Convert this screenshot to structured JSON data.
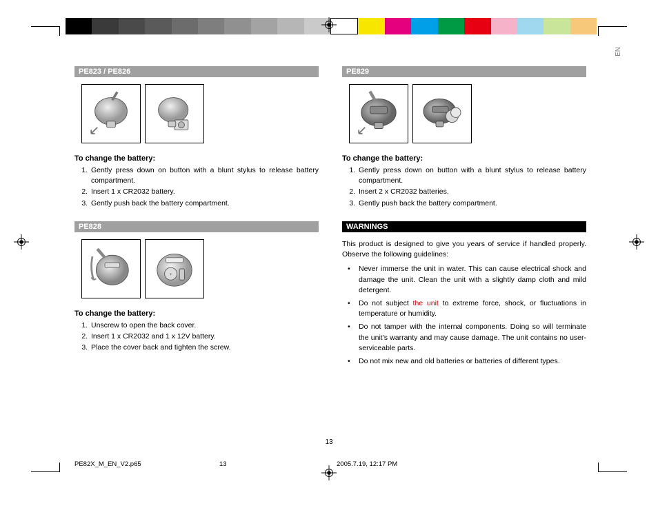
{
  "colorbar": [
    "#000000",
    "#3a3a3a",
    "#4a4a4a",
    "#5a5a5a",
    "#6c6c6c",
    "#7e7e7e",
    "#909090",
    "#a3a3a3",
    "#b6b6b6",
    "#cacaca",
    "#ffffff",
    "#f7e600",
    "#e5007e",
    "#00a0e9",
    "#009944",
    "#e60012",
    "#f5b2c8",
    "#a0d8ef",
    "#c8e59a",
    "#f7c87a"
  ],
  "lang": "EN",
  "page_number": "13",
  "footer": {
    "file": "PE82X_M_EN_V2.p65",
    "page": "13",
    "stamp": "2005.7.19, 12:17 PM"
  },
  "left": {
    "sec1": {
      "title": "PE823 / PE826",
      "heading": "To change the battery:",
      "steps": [
        "Gently press down on button with a blunt stylus to release battery compartment.",
        "Insert 1 x CR2032 battery.",
        "Gently push back the battery compartment."
      ]
    },
    "sec2": {
      "title": "PE828",
      "heading": "To change the battery:",
      "steps": [
        "Unscrew to open the back cover.",
        "Insert 1 x CR2032 and 1 x 12V battery.",
        "Place the cover back and tighten the screw."
      ]
    }
  },
  "right": {
    "sec1": {
      "title": "PE829",
      "heading": "To change the battery:",
      "steps": [
        "Gently press down on button with a blunt stylus to release battery compartment.",
        "Insert 2 x CR2032 batteries.",
        "Gently push back the battery compartment."
      ]
    },
    "warn": {
      "title": "WARNINGS",
      "intro": "This product is designed to give you years of service if handled properly. Observe the following guidelines:",
      "b1a": "Never immerse the unit in water. This can cause electrical shock and damage the unit. Clean the unit with a slightly damp cloth and mild detergent.",
      "b2a": "Do not subject ",
      "b2red": "the unit",
      "b2b": " to extreme force, shock, or fluctuations in temperature or humidity.",
      "b3": "Do not tamper with the internal components. Doing so will terminate the unit's warranty and may cause damage. The unit contains no user-serviceable parts.",
      "b4": "Do not mix new and old batteries or batteries of different types."
    }
  }
}
